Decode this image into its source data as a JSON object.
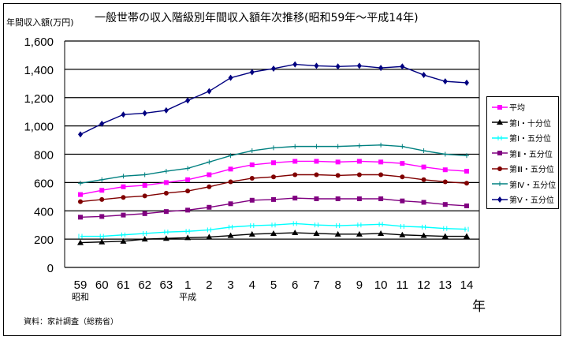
{
  "chart_data": {
    "type": "line",
    "title": "一般世帯の収入階級別年間収入額年次推移(昭和59年～平成14年)",
    "ylabel": "年間収入額(万円)",
    "xlabel": "年",
    "ylim": [
      0,
      1600
    ],
    "yticks": [
      "0",
      "200",
      "400",
      "600",
      "800",
      "1,000",
      "1,200",
      "1,400",
      "1,600"
    ],
    "ytick_values": [
      0,
      200,
      400,
      600,
      800,
      1000,
      1200,
      1400,
      1600
    ],
    "categories": [
      "59",
      "60",
      "61",
      "62",
      "63",
      "1",
      "2",
      "3",
      "4",
      "5",
      "6",
      "7",
      "8",
      "9",
      "10",
      "11",
      "12",
      "13",
      "14"
    ],
    "era_labels": [
      {
        "index": 0,
        "text": "昭和"
      },
      {
        "index": 5,
        "text": "平成"
      }
    ],
    "grid": true,
    "legend_position": "right",
    "series": [
      {
        "name": "平均",
        "color": "#ff00ff",
        "marker": "square",
        "values": [
          515,
          545,
          570,
          580,
          600,
          620,
          655,
          695,
          725,
          740,
          750,
          750,
          745,
          750,
          745,
          735,
          710,
          690,
          680
        ]
      },
      {
        "name": "第Ⅰ・十分位",
        "color": "#000000",
        "marker": "triangle",
        "values": [
          175,
          180,
          185,
          200,
          205,
          210,
          215,
          225,
          235,
          240,
          245,
          240,
          235,
          235,
          240,
          230,
          225,
          220,
          220
        ]
      },
      {
        "name": "第Ⅰ・五分位",
        "color": "#00ffff",
        "marker": "cross",
        "values": [
          220,
          220,
          230,
          240,
          250,
          255,
          265,
          285,
          295,
          300,
          310,
          300,
          295,
          300,
          305,
          290,
          285,
          275,
          270
        ]
      },
      {
        "name": "第Ⅱ・五分位",
        "color": "#800080",
        "marker": "square",
        "values": [
          355,
          360,
          370,
          380,
          395,
          405,
          425,
          450,
          475,
          480,
          490,
          485,
          485,
          485,
          485,
          470,
          460,
          445,
          435
        ]
      },
      {
        "name": "第Ⅲ・五分位",
        "color": "#800000",
        "marker": "circle",
        "values": [
          465,
          480,
          495,
          505,
          525,
          540,
          570,
          605,
          630,
          640,
          655,
          655,
          650,
          655,
          655,
          640,
          620,
          605,
          595
        ]
      },
      {
        "name": "第Ⅳ・五分位",
        "color": "#008080",
        "marker": "plus",
        "values": [
          595,
          620,
          645,
          655,
          680,
          700,
          745,
          790,
          825,
          845,
          855,
          855,
          855,
          860,
          865,
          855,
          825,
          800,
          790
        ]
      },
      {
        "name": "第Ⅴ・五分位",
        "color": "#000080",
        "marker": "diamond",
        "values": [
          940,
          1015,
          1080,
          1090,
          1110,
          1180,
          1245,
          1340,
          1380,
          1405,
          1435,
          1425,
          1420,
          1425,
          1410,
          1420,
          1360,
          1315,
          1305
        ]
      }
    ],
    "source": "資料：家計調査（総務省）"
  }
}
